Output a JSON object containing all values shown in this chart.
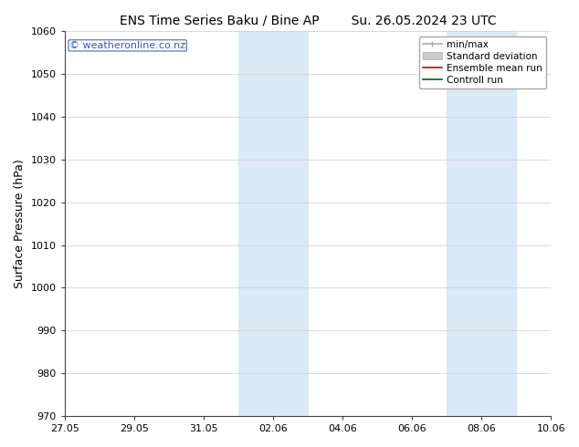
{
  "title_left": "ENS Time Series Baku / Bine AP",
  "title_right": "Su. 26.05.2024 23 UTC",
  "ylabel": "Surface Pressure (hPa)",
  "ylim": [
    970,
    1060
  ],
  "yticks": [
    970,
    980,
    990,
    1000,
    1010,
    1020,
    1030,
    1040,
    1050,
    1060
  ],
  "xtick_labels": [
    "27.05",
    "29.05",
    "31.05",
    "02.06",
    "04.06",
    "06.06",
    "08.06",
    "10.06"
  ],
  "xtick_positions": [
    0,
    2,
    4,
    6,
    8,
    10,
    12,
    14
  ],
  "shaded_bands": [
    {
      "x_start": 5.0,
      "x_end": 7.0
    },
    {
      "x_start": 11.0,
      "x_end": 13.0
    }
  ],
  "shade_color": "#daeaf7",
  "watermark": "© weatheronline.co.nz",
  "watermark_color": "#3355bb",
  "legend_items": [
    {
      "label": "min/max",
      "color": "#aaaaaa",
      "style": "minmax"
    },
    {
      "label": "Standard deviation",
      "color": "#cccccc",
      "style": "band"
    },
    {
      "label": "Ensemble mean run",
      "color": "#cc0000",
      "style": "line"
    },
    {
      "label": "Controll run",
      "color": "#006600",
      "style": "line"
    }
  ],
  "bg_color": "#ffffff",
  "title_fontsize": 10,
  "ylabel_fontsize": 9,
  "tick_fontsize": 8,
  "legend_fontsize": 7.5,
  "watermark_fontsize": 8
}
